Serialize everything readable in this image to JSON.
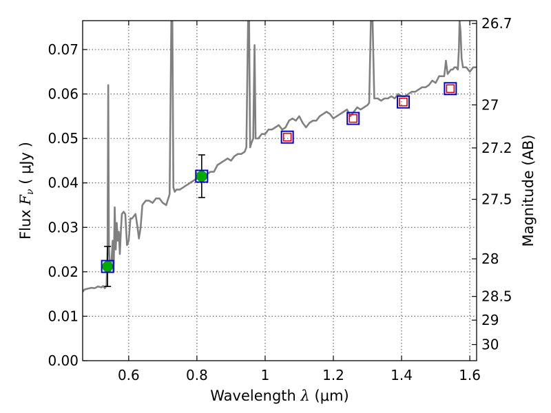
{
  "chart_data": {
    "type": "line",
    "xlabel": "Wavelength  λ (μm)",
    "xlabel_parts": {
      "text": "Wavelength",
      "symbol": "λ",
      "unit": "(μm)"
    },
    "ylabel": "Flux  Fν  ( μJy )",
    "ylabel_parts": {
      "text": "Flux",
      "symbol": "F",
      "subscript": "ν",
      "unit": "( μJy )"
    },
    "y2label": "Magnitude (AB)",
    "xlim": [
      0.465,
      1.62
    ],
    "ylim": [
      0.0,
      0.0765
    ],
    "xticks": [
      0.6,
      0.8,
      1.0,
      1.2,
      1.4,
      1.6
    ],
    "xtick_labels": [
      "0.6",
      "0.8",
      "1",
      "1.2",
      "1.4",
      "1.6"
    ],
    "yticks": [
      0.0,
      0.01,
      0.02,
      0.03,
      0.04,
      0.05,
      0.06,
      0.07
    ],
    "ytick_labels": [
      "0.00",
      "0.01",
      "0.02",
      "0.03",
      "0.04",
      "0.05",
      "0.06",
      "0.07"
    ],
    "magnitude_ticks": [
      {
        "label": "26.7",
        "mag": 26.7
      },
      {
        "label": "27",
        "mag": 27.0
      },
      {
        "label": "27.2",
        "mag": 27.2
      },
      {
        "label": "27.5",
        "mag": 27.5
      },
      {
        "label": "28",
        "mag": 28.0
      },
      {
        "label": "28.5",
        "mag": 28.5
      },
      {
        "label": "29",
        "mag": 29.0
      },
      {
        "label": "30",
        "mag": 30.0
      }
    ],
    "grid": true,
    "colors": {
      "sed_line": "#808080",
      "observed_marker": "#00aa00",
      "model_marker": "#0000cc",
      "predicted_marker": "#dd0000",
      "errorbar": "#000000"
    },
    "series": [
      {
        "type": "line",
        "points": [
          [
            0.465,
            0.0155
          ],
          [
            0.47,
            0.016
          ],
          [
            0.48,
            0.0162
          ],
          [
            0.49,
            0.0164
          ],
          [
            0.5,
            0.0163
          ],
          [
            0.51,
            0.0167
          ],
          [
            0.52,
            0.0165
          ],
          [
            0.525,
            0.0168
          ],
          [
            0.53,
            0.0163
          ],
          [
            0.535,
            0.017
          ],
          [
            0.538,
            0.025
          ],
          [
            0.54,
            0.062
          ],
          [
            0.542,
            0.026
          ],
          [
            0.545,
            0.02
          ],
          [
            0.55,
            0.023
          ],
          [
            0.553,
            0.027
          ],
          [
            0.556,
            0.02
          ],
          [
            0.559,
            0.0345
          ],
          [
            0.562,
            0.025
          ],
          [
            0.565,
            0.031
          ],
          [
            0.568,
            0.027
          ],
          [
            0.571,
            0.029
          ],
          [
            0.574,
            0.024
          ],
          [
            0.577,
            0.029
          ],
          [
            0.58,
            0.033
          ],
          [
            0.585,
            0.0335
          ],
          [
            0.59,
            0.033
          ],
          [
            0.595,
            0.026
          ],
          [
            0.6,
            0.027
          ],
          [
            0.605,
            0.032
          ],
          [
            0.61,
            0.032
          ],
          [
            0.615,
            0.0325
          ],
          [
            0.62,
            0.033
          ],
          [
            0.625,
            0.0305
          ],
          [
            0.63,
            0.0275
          ],
          [
            0.635,
            0.03
          ],
          [
            0.64,
            0.035
          ],
          [
            0.65,
            0.036
          ],
          [
            0.66,
            0.036
          ],
          [
            0.67,
            0.0355
          ],
          [
            0.68,
            0.0365
          ],
          [
            0.69,
            0.0365
          ],
          [
            0.7,
            0.0355
          ],
          [
            0.71,
            0.035
          ],
          [
            0.72,
            0.0375
          ],
          [
            0.725,
            0.0765
          ],
          [
            0.728,
            0.0765
          ],
          [
            0.731,
            0.039
          ],
          [
            0.735,
            0.038
          ],
          [
            0.74,
            0.0385
          ],
          [
            0.75,
            0.0385
          ],
          [
            0.76,
            0.039
          ],
          [
            0.77,
            0.0395
          ],
          [
            0.78,
            0.04
          ],
          [
            0.79,
            0.0405
          ],
          [
            0.8,
            0.041
          ],
          [
            0.81,
            0.041
          ],
          [
            0.82,
            0.0415
          ],
          [
            0.83,
            0.042
          ],
          [
            0.84,
            0.0425
          ],
          [
            0.85,
            0.0425
          ],
          [
            0.86,
            0.044
          ],
          [
            0.87,
            0.0445
          ],
          [
            0.88,
            0.045
          ],
          [
            0.89,
            0.0455
          ],
          [
            0.9,
            0.045
          ],
          [
            0.91,
            0.046
          ],
          [
            0.92,
            0.0465
          ],
          [
            0.93,
            0.0465
          ],
          [
            0.94,
            0.047
          ],
          [
            0.945,
            0.048
          ],
          [
            0.95,
            0.0765
          ],
          [
            0.953,
            0.0765
          ],
          [
            0.956,
            0.048
          ],
          [
            0.96,
            0.049
          ],
          [
            0.965,
            0.05
          ],
          [
            0.969,
            0.071
          ],
          [
            0.972,
            0.05
          ],
          [
            0.98,
            0.05
          ],
          [
            0.99,
            0.051
          ],
          [
            1.0,
            0.051
          ],
          [
            1.01,
            0.052
          ],
          [
            1.02,
            0.052
          ],
          [
            1.03,
            0.0525
          ],
          [
            1.04,
            0.053
          ],
          [
            1.05,
            0.052
          ],
          [
            1.06,
            0.0525
          ],
          [
            1.07,
            0.054
          ],
          [
            1.08,
            0.0545
          ],
          [
            1.09,
            0.054
          ],
          [
            1.1,
            0.055
          ],
          [
            1.11,
            0.0535
          ],
          [
            1.12,
            0.0525
          ],
          [
            1.13,
            0.0535
          ],
          [
            1.14,
            0.054
          ],
          [
            1.15,
            0.054
          ],
          [
            1.16,
            0.055
          ],
          [
            1.17,
            0.0555
          ],
          [
            1.18,
            0.056
          ],
          [
            1.19,
            0.0555
          ],
          [
            1.2,
            0.0545
          ],
          [
            1.21,
            0.055
          ],
          [
            1.22,
            0.0555
          ],
          [
            1.23,
            0.056
          ],
          [
            1.24,
            0.0565
          ],
          [
            1.25,
            0.055
          ],
          [
            1.26,
            0.056
          ],
          [
            1.27,
            0.057
          ],
          [
            1.28,
            0.0565
          ],
          [
            1.29,
            0.057
          ],
          [
            1.3,
            0.0575
          ],
          [
            1.305,
            0.058
          ],
          [
            1.31,
            0.0765
          ],
          [
            1.315,
            0.0765
          ],
          [
            1.32,
            0.059
          ],
          [
            1.33,
            0.059
          ],
          [
            1.34,
            0.0585
          ],
          [
            1.35,
            0.059
          ],
          [
            1.36,
            0.059
          ],
          [
            1.37,
            0.0595
          ],
          [
            1.38,
            0.059
          ],
          [
            1.39,
            0.06
          ],
          [
            1.4,
            0.0595
          ],
          [
            1.41,
            0.0595
          ],
          [
            1.42,
            0.06
          ],
          [
            1.43,
            0.0605
          ],
          [
            1.44,
            0.0605
          ],
          [
            1.45,
            0.061
          ],
          [
            1.46,
            0.0615
          ],
          [
            1.47,
            0.0615
          ],
          [
            1.48,
            0.062
          ],
          [
            1.49,
            0.063
          ],
          [
            1.5,
            0.0625
          ],
          [
            1.51,
            0.064
          ],
          [
            1.52,
            0.064
          ],
          [
            1.525,
            0.064
          ],
          [
            1.528,
            0.066
          ],
          [
            1.53,
            0.0675
          ],
          [
            1.535,
            0.0645
          ],
          [
            1.54,
            0.065
          ],
          [
            1.545,
            0.0655
          ],
          [
            1.55,
            0.0655
          ],
          [
            1.555,
            0.066
          ],
          [
            1.56,
            0.066
          ],
          [
            1.565,
            0.0655
          ],
          [
            1.568,
            0.07
          ],
          [
            1.57,
            0.0765
          ],
          [
            1.573,
            0.074
          ],
          [
            1.576,
            0.068
          ],
          [
            1.58,
            0.066
          ],
          [
            1.59,
            0.066
          ],
          [
            1.6,
            0.065
          ],
          [
            1.61,
            0.066
          ],
          [
            1.62,
            0.066
          ]
        ]
      },
      {
        "type": "scatter",
        "marker": "circle",
        "points": [
          {
            "x": 0.538,
            "y": 0.0212,
            "yerr": 0.0045
          },
          {
            "x": 0.814,
            "y": 0.0415,
            "yerr": 0.0048
          }
        ]
      },
      {
        "type": "scatter",
        "marker": "square",
        "points": [
          {
            "x": 0.538,
            "y": 0.0212
          },
          {
            "x": 0.814,
            "y": 0.0415
          },
          {
            "x": 1.065,
            "y": 0.0503
          },
          {
            "x": 1.258,
            "y": 0.0545
          },
          {
            "x": 1.405,
            "y": 0.0582
          },
          {
            "x": 1.543,
            "y": 0.0612
          }
        ]
      },
      {
        "type": "scatter",
        "marker": "square-small",
        "points": [
          {
            "x": 1.065,
            "y": 0.0503
          },
          {
            "x": 1.258,
            "y": 0.0545
          },
          {
            "x": 1.405,
            "y": 0.0582
          },
          {
            "x": 1.543,
            "y": 0.0612
          }
        ]
      }
    ]
  }
}
